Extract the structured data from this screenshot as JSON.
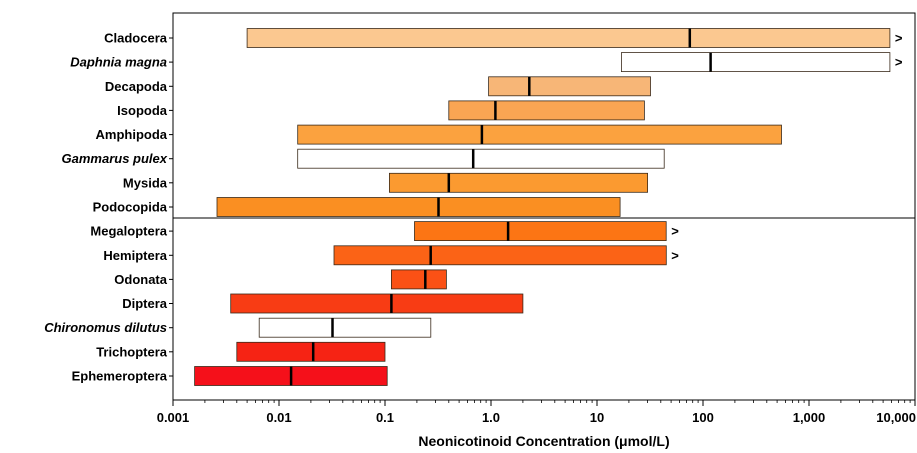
{
  "chart_data": {
    "type": "bar",
    "subtype": "floating-range-with-median",
    "xlabel": "Neonicotinoid Concentration (μmol/L)",
    "ylabel": "",
    "x_scale": "log",
    "xlim": [
      0.001,
      10000
    ],
    "x_ticks": [
      0.001,
      0.01,
      0.1,
      1,
      10,
      100,
      1000,
      10000
    ],
    "x_tick_labels": [
      "0.001",
      "0.01",
      "0.1",
      "1.0",
      "10",
      "100",
      "1,000",
      "10,000"
    ],
    "grid": false,
    "group_divider_after_index": 7,
    "categories": [
      {
        "label": "Cladocera",
        "italic": false,
        "min": 0.005,
        "max": 5800,
        "median": 75,
        "exceeds": true,
        "fill": "#fbc890"
      },
      {
        "label": "Daphnia magna",
        "italic": true,
        "min": 17,
        "max": 5800,
        "median": 118,
        "exceeds": true,
        "fill": "#ffffff"
      },
      {
        "label": "Decapoda",
        "italic": false,
        "min": 0.95,
        "max": 32,
        "median": 2.3,
        "exceeds": false,
        "fill": "#f7b677"
      },
      {
        "label": "Isopoda",
        "italic": false,
        "min": 0.4,
        "max": 28,
        "median": 1.1,
        "exceeds": false,
        "fill": "#f9a553"
      },
      {
        "label": "Amphipoda",
        "italic": false,
        "min": 0.015,
        "max": 550,
        "median": 0.82,
        "exceeds": false,
        "fill": "#fba23f"
      },
      {
        "label": "Gammarus pulex",
        "italic": true,
        "min": 0.015,
        "max": 43,
        "median": 0.68,
        "exceeds": false,
        "fill": "#ffffff"
      },
      {
        "label": "Mysida",
        "italic": false,
        "min": 0.11,
        "max": 30,
        "median": 0.4,
        "exceeds": false,
        "fill": "#fb9a30"
      },
      {
        "label": "Podocopida",
        "italic": false,
        "min": 0.0026,
        "max": 16.5,
        "median": 0.32,
        "exceeds": false,
        "fill": "#fa8f22"
      },
      {
        "label": "Megaloptera",
        "italic": false,
        "min": 0.19,
        "max": 45,
        "median": 1.45,
        "exceeds": true,
        "fill": "#fc7514"
      },
      {
        "label": "Hemiptera",
        "italic": false,
        "min": 0.033,
        "max": 45,
        "median": 0.27,
        "exceeds": true,
        "fill": "#fb6316"
      },
      {
        "label": "Odonata",
        "italic": false,
        "min": 0.115,
        "max": 0.38,
        "median": 0.24,
        "exceeds": false,
        "fill": "#fb5115"
      },
      {
        "label": "Diptera",
        "italic": false,
        "min": 0.0035,
        "max": 2.0,
        "median": 0.115,
        "exceeds": false,
        "fill": "#f83c14"
      },
      {
        "label": "Chironomus dilutus",
        "italic": true,
        "min": 0.0065,
        "max": 0.27,
        "median": 0.032,
        "exceeds": false,
        "fill": "#ffffff"
      },
      {
        "label": "Trichoptera",
        "italic": false,
        "min": 0.004,
        "max": 0.1,
        "median": 0.021,
        "exceeds": false,
        "fill": "#f62314"
      },
      {
        "label": "Ephemeroptera",
        "italic": false,
        "min": 0.0016,
        "max": 0.105,
        "median": 0.013,
        "exceeds": false,
        "fill": "#f5101a"
      }
    ],
    "exceeds_marker": ">"
  }
}
